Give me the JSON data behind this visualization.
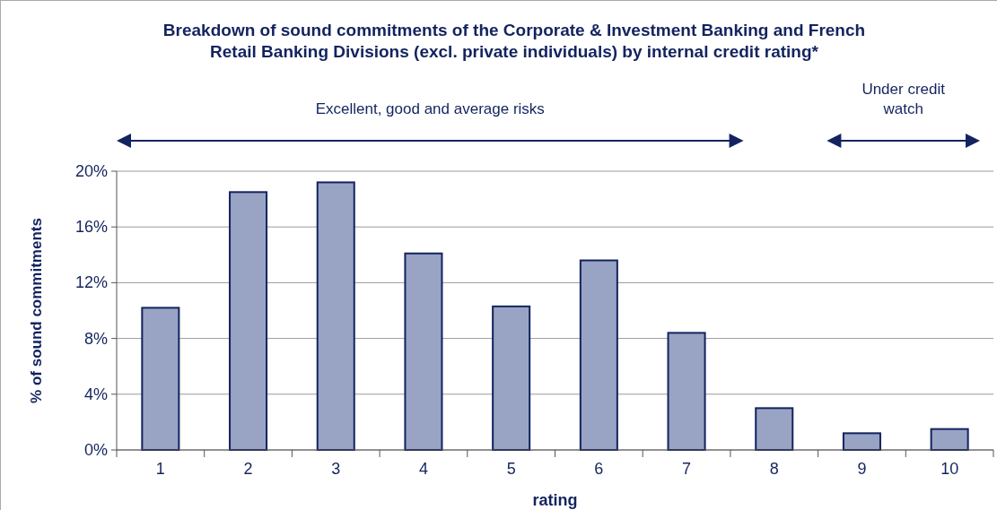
{
  "chart_data": {
    "type": "bar",
    "title": "Breakdown of sound commitments of the Corporate & Investment Banking and French Retail Banking Divisions (excl. private individuals) by internal credit rating*",
    "xlabel": "rating",
    "ylabel": "% of sound commitments",
    "categories": [
      "1",
      "2",
      "3",
      "4",
      "5",
      "6",
      "7",
      "8",
      "9",
      "10"
    ],
    "values": [
      10.2,
      18.5,
      19.2,
      14.1,
      10.3,
      13.6,
      8.4,
      3.0,
      1.2,
      1.5
    ],
    "color": "#99a3c4",
    "ylim": [
      0,
      20
    ],
    "yticks": [
      {
        "value": 0,
        "label": "0%"
      },
      {
        "value": 4,
        "label": "4%"
      },
      {
        "value": 8,
        "label": "8%"
      },
      {
        "value": 12,
        "label": "12%"
      },
      {
        "value": 16,
        "label": "16%"
      },
      {
        "value": 20,
        "label": "20%"
      }
    ],
    "grid": "y",
    "annotations": [
      "Excellent, good and average risks",
      "Under credit watch"
    ]
  }
}
